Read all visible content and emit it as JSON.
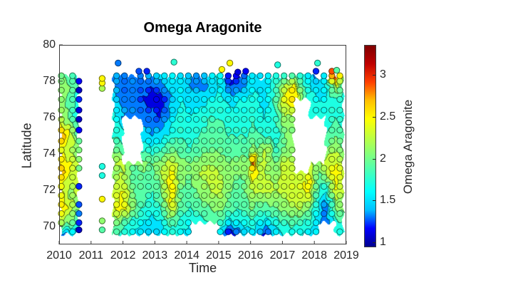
{
  "figure": {
    "title": "Omega Aragonite"
  },
  "chart_data": {
    "type": "contour",
    "subtype": "filled-contour-with-scatter-overlay",
    "title": "Omega Aragonite",
    "xlabel": "Time",
    "ylabel": "Latitude",
    "xlim": [
      2010,
      2019
    ],
    "ylim": [
      69,
      80
    ],
    "x_ticks": [
      "2010",
      "2011",
      "2012",
      "2013",
      "2014",
      "2015",
      "2016",
      "2017",
      "2018",
      "2019"
    ],
    "x_tick_values": [
      2010,
      2011,
      2012,
      2013,
      2014,
      2015,
      2016,
      2017,
      2018,
      2019
    ],
    "y_ticks": [
      "70",
      "72",
      "74",
      "76",
      "78",
      "80"
    ],
    "y_tick_values": [
      70,
      72,
      74,
      76,
      78,
      80
    ],
    "caxis": [
      0.94,
      3.36
    ],
    "contour_interval": 0.2,
    "grid_lines": "off",
    "colormap": [
      "#00008f",
      "#0000ff",
      "#00bfff",
      "#00ffff",
      "#40ffbf",
      "#80ff80",
      "#bfff40",
      "#ffff00",
      "#ffbf00",
      "#ff4000",
      "#bf0000",
      "#7f0000"
    ],
    "colorbar": {
      "label": "Omega Aragonite",
      "position": "right",
      "ticks": [
        "1",
        "1.5",
        "2",
        "2.5",
        "3"
      ],
      "tick_values": [
        1,
        1.5,
        2,
        2.5,
        3
      ],
      "range": [
        0.94,
        3.36
      ]
    },
    "grid": {
      "times": [
        2010.05,
        2010.35,
        2010.6,
        2011.0,
        2011.7,
        2012.0,
        2012.3,
        2012.6,
        2012.9,
        2013.2,
        2013.5,
        2013.8,
        2014.1,
        2014.4,
        2014.7,
        2015.0,
        2015.35,
        2015.7,
        2015.95,
        2016.1,
        2016.25,
        2016.45,
        2016.8,
        2017.1,
        2017.35,
        2017.6,
        2017.85,
        2018.1,
        2018.35,
        2018.65,
        2018.9
      ],
      "lats": [
        69.55,
        70.2,
        71.0,
        72.0,
        73.0,
        73.5,
        74.2,
        75.0,
        76.0,
        77.0,
        77.7,
        78.3
      ],
      "omega": [
        [
          1.2,
          2.2,
          2.6,
          2.4,
          2.7,
          2.6,
          2.4,
          2.8,
          2.2,
          2.1,
          2.1,
          2.0
        ],
        [
          1.5,
          2.0,
          2.3,
          2.1,
          2.4,
          2.4,
          2.2,
          2.4,
          1.9,
          1.9,
          2.0,
          1.9
        ],
        [
          1.4,
          1.8,
          2.0,
          2.3,
          2.2,
          2.2,
          2.1,
          1.9,
          1.6,
          1.7,
          1.8,
          1.7
        ],
        [
          null,
          null,
          null,
          null,
          null,
          null,
          null,
          null,
          null,
          null,
          null,
          null
        ],
        [
          1.9,
          2.1,
          2.4,
          2.3,
          2.1,
          2.2,
          2.0,
          1.8,
          1.7,
          1.5,
          1.4,
          1.4
        ],
        [
          1.7,
          1.9,
          2.5,
          2.4,
          2.2,
          2.3,
          1.9,
          1.7,
          1.4,
          1.3,
          1.25,
          1.3
        ],
        [
          1.6,
          1.7,
          2.1,
          2.0,
          1.9,
          2.0,
          null,
          null,
          1.35,
          1.3,
          1.3,
          1.35
        ],
        [
          1.5,
          1.6,
          1.8,
          1.9,
          2.0,
          2.1,
          1.8,
          1.5,
          1.3,
          1.2,
          1.25,
          1.3
        ],
        [
          1.4,
          1.5,
          1.7,
          1.8,
          1.9,
          2.0,
          1.7,
          1.4,
          1.25,
          1.15,
          1.2,
          1.4
        ],
        [
          1.5,
          1.6,
          1.8,
          2.0,
          2.2,
          2.1,
          1.8,
          1.5,
          1.2,
          1.1,
          1.3,
          1.5
        ],
        [
          1.7,
          1.9,
          2.4,
          2.6,
          2.5,
          2.3,
          2.0,
          1.7,
          1.5,
          1.4,
          1.5,
          1.6
        ],
        [
          1.6,
          1.7,
          1.9,
          2.0,
          2.1,
          2.1,
          1.9,
          1.8,
          1.7,
          1.6,
          1.6,
          1.5
        ],
        [
          1.5,
          1.6,
          1.8,
          1.9,
          2.0,
          2.0,
          1.8,
          1.7,
          1.6,
          1.5,
          1.4,
          1.4
        ],
        [
          null,
          1.7,
          1.9,
          2.1,
          2.2,
          2.1,
          1.9,
          1.8,
          1.7,
          1.5,
          1.3,
          1.3
        ],
        [
          null,
          1.8,
          2.0,
          2.2,
          2.3,
          2.2,
          2.0,
          1.9,
          1.8,
          1.6,
          1.4,
          1.5
        ],
        [
          1.6,
          1.8,
          2.1,
          2.3,
          2.2,
          2.1,
          2.0,
          1.9,
          1.8,
          1.7,
          1.6,
          1.7
        ],
        [
          1.0,
          1.5,
          1.9,
          2.0,
          2.1,
          2.0,
          1.9,
          1.8,
          1.7,
          1.5,
          1.2,
          1.1
        ],
        [
          1.4,
          1.6,
          1.8,
          1.9,
          2.0,
          2.1,
          1.9,
          1.8,
          1.7,
          1.6,
          1.3,
          1.2
        ],
        [
          1.5,
          1.7,
          2.0,
          2.1,
          2.2,
          2.1,
          1.9,
          1.8,
          1.7,
          1.6,
          1.5,
          1.4
        ],
        [
          1.5,
          1.7,
          2.0,
          2.3,
          2.6,
          3.1,
          2.2,
          1.9,
          1.8,
          1.7,
          1.6,
          1.6
        ],
        [
          1.4,
          1.6,
          1.9,
          2.2,
          2.3,
          2.2,
          2.0,
          1.8,
          1.7,
          1.6,
          1.5,
          1.5
        ],
        [
          1.1,
          1.5,
          1.9,
          2.3,
          2.2,
          2.2,
          2.3,
          1.8,
          1.6,
          1.5,
          1.5,
          1.5
        ],
        [
          1.5,
          1.7,
          2.0,
          2.2,
          2.1,
          2.0,
          1.8,
          1.7,
          1.8,
          1.9,
          1.8,
          1.7
        ],
        [
          1.6,
          1.8,
          2.1,
          2.3,
          2.4,
          2.3,
          2.1,
          2.0,
          2.2,
          2.5,
          2.3,
          1.8
        ],
        [
          1.6,
          1.9,
          2.2,
          2.4,
          2.3,
          2.2,
          2.1,
          2.0,
          2.1,
          2.6,
          2.6,
          1.9
        ],
        [
          1.6,
          1.8,
          2.2,
          2.4,
          2.3,
          null,
          null,
          null,
          null,
          2.0,
          1.9,
          1.7
        ],
        [
          1.5,
          1.7,
          2.0,
          2.5,
          2.4,
          2.2,
          2.0,
          1.9,
          1.8,
          1.7,
          1.6,
          1.5
        ],
        [
          1.6,
          1.5,
          1.6,
          1.8,
          2.0,
          2.1,
          null,
          null,
          1.7,
          1.6,
          1.5,
          1.3
        ],
        [
          null,
          1.3,
          1.2,
          1.6,
          2.2,
          2.3,
          2.0,
          1.8,
          1.7,
          1.6,
          1.6,
          1.6
        ],
        [
          1.6,
          1.7,
          2.0,
          2.4,
          2.6,
          2.4,
          2.2,
          2.0,
          1.8,
          1.8,
          2.2,
          3.3
        ],
        [
          1.7,
          1.8,
          2.1,
          2.2,
          2.3,
          2.2,
          2.0,
          1.9,
          1.7,
          1.7,
          1.9,
          2.0
        ]
      ]
    },
    "scatter": {
      "station_lats": [
        69.7,
        70.2,
        70.7,
        71.2,
        71.7,
        72.2,
        72.7,
        73.2,
        73.7,
        74.2,
        74.7,
        75.3,
        75.9,
        76.4,
        77.0,
        77.5,
        78.0,
        78.3
      ],
      "cruise_times": [
        2010.07,
        2010.42,
        2011.8,
        2012.05,
        2012.3,
        2012.55,
        2012.8,
        2013.05,
        2013.3,
        2013.55,
        2013.8,
        2014.05,
        2014.3,
        2014.55,
        2014.8,
        2015.05,
        2015.3,
        2015.55,
        2015.8,
        2016.05,
        2016.3,
        2016.55,
        2016.8,
        2017.05,
        2017.3,
        2017.55,
        2017.8,
        2018.05,
        2018.3,
        2018.55,
        2018.8
      ],
      "special_cruises": [
        {
          "t": 2010.62,
          "points": [
            [
              69.8,
              1.05
            ],
            [
              70.2,
              1.2
            ],
            [
              70.7,
              1.3
            ],
            [
              71.2,
              1.25
            ],
            [
              72.2,
              1.2
            ],
            [
              73.2,
              2.0
            ],
            [
              73.7,
              2.1
            ],
            [
              74.2,
              2.05
            ],
            [
              74.7,
              1.95
            ],
            [
              75.3,
              1.15
            ],
            [
              75.9,
              1.05
            ],
            [
              76.4,
              1.1
            ],
            [
              77.0,
              1.2
            ],
            [
              77.5,
              1.05
            ],
            [
              78.0,
              1.15
            ]
          ]
        },
        {
          "t": 2011.35,
          "points": [
            [
              69.8,
              1.9
            ],
            [
              70.3,
              2.1
            ],
            [
              71.5,
              2.5
            ],
            [
              72.8,
              1.7
            ],
            [
              73.3,
              1.7
            ],
            [
              77.6,
              2.2
            ],
            [
              77.9,
              2.5
            ],
            [
              78.15,
              2.5
            ]
          ]
        }
      ],
      "isolated_points": [
        [
          2011.85,
          79.0,
          1.3
        ],
        [
          2013.6,
          79.05,
          1.75
        ],
        [
          2015.1,
          78.65,
          2.5
        ],
        [
          2015.35,
          79.0,
          2.5
        ],
        [
          2016.85,
          78.9,
          1.7
        ],
        [
          2018.1,
          79.0,
          1.75
        ],
        [
          2012.5,
          78.55,
          1.25
        ],
        [
          2012.75,
          78.55,
          1.2
        ],
        [
          2015.6,
          78.5,
          1.1
        ],
        [
          2015.85,
          78.55,
          1.15
        ],
        [
          2018.05,
          78.55,
          1.2
        ],
        [
          2018.55,
          78.55,
          2.9
        ],
        [
          2018.7,
          78.6,
          1.9
        ]
      ]
    }
  }
}
